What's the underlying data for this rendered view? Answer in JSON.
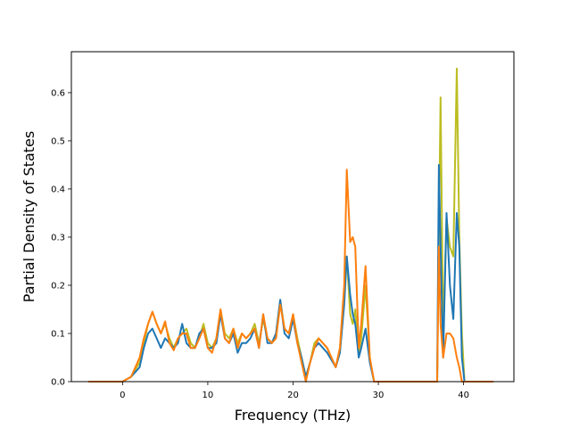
{
  "chart_data": {
    "type": "line",
    "title": "",
    "xlabel": "Frequency (THz)",
    "ylabel": "Partial Density of States",
    "xlim": [
      -6.0,
      45.9
    ],
    "ylim": [
      0.0,
      0.685
    ],
    "xticks": [
      0,
      10,
      20,
      30,
      40
    ],
    "yticks": [
      0.0,
      0.1,
      0.2,
      0.3,
      0.4,
      0.5,
      0.6
    ],
    "xtick_labels": [
      "0",
      "10",
      "20",
      "30",
      "40"
    ],
    "ytick_labels": [
      "0.0",
      "0.1",
      "0.2",
      "0.3",
      "0.4",
      "0.5",
      "0.6"
    ],
    "grid": false,
    "legend": "none",
    "series": [
      {
        "color": "#bcbd22",
        "x": [
          -4,
          0,
          1,
          2,
          2.5,
          3,
          3.5,
          4,
          4.5,
          5,
          5.5,
          6,
          6.5,
          7,
          7.5,
          8,
          8.5,
          9,
          9.5,
          10,
          10.5,
          11,
          11.5,
          12,
          12.5,
          13,
          13.5,
          14,
          14.5,
          15,
          15.5,
          16,
          16.5,
          17,
          17.5,
          18,
          18.5,
          19,
          19.5,
          20,
          20.5,
          21,
          21.5,
          22,
          22.5,
          23,
          24,
          25,
          25.5,
          26,
          26.3,
          26.7,
          27,
          27.3,
          27.7,
          28,
          28.5,
          29,
          29.5,
          30,
          36.9,
          37.1,
          37.3,
          37.6,
          38,
          38.4,
          38.8,
          39.2,
          39.5,
          39.8,
          40.1,
          43.5
        ],
        "y": [
          0,
          0,
          0.01,
          0.04,
          0.08,
          0.12,
          0.145,
          0.12,
          0.1,
          0.12,
          0.09,
          0.07,
          0.09,
          0.1,
          0.11,
          0.08,
          0.07,
          0.09,
          0.12,
          0.08,
          0.07,
          0.09,
          0.15,
          0.1,
          0.09,
          0.11,
          0.08,
          0.1,
          0.09,
          0.1,
          0.12,
          0.08,
          0.13,
          0.09,
          0.08,
          0.1,
          0.17,
          0.11,
          0.1,
          0.14,
          0.09,
          0.05,
          0.01,
          0.04,
          0.08,
          0.09,
          0.07,
          0.03,
          0.07,
          0.19,
          0.26,
          0.14,
          0.12,
          0.15,
          0.06,
          0.09,
          0.2,
          0.05,
          0.0,
          0.0,
          0.0,
          0.3,
          0.59,
          0.1,
          0.34,
          0.28,
          0.26,
          0.65,
          0.3,
          0.1,
          0.0,
          0.0
        ]
      },
      {
        "color": "#1f77b4",
        "x": [
          -4,
          0,
          1,
          2,
          2.5,
          3,
          3.5,
          4,
          4.5,
          5,
          5.5,
          6,
          6.5,
          7,
          7.5,
          8,
          8.5,
          9,
          9.5,
          10,
          10.5,
          11,
          11.5,
          12,
          12.5,
          13,
          13.5,
          14,
          14.5,
          15,
          15.5,
          16,
          16.5,
          17,
          17.5,
          18,
          18.5,
          19,
          19.5,
          20,
          20.5,
          21,
          21.5,
          22,
          22.5,
          23,
          24,
          25,
          25.5,
          26,
          26.3,
          26.7,
          27,
          27.3,
          27.7,
          28,
          28.5,
          29,
          29.5,
          30,
          36.9,
          37.1,
          37.3,
          37.6,
          38,
          38.4,
          38.8,
          39.2,
          39.5,
          39.8,
          40.1,
          43.5
        ],
        "y": [
          0,
          0,
          0.01,
          0.03,
          0.07,
          0.1,
          0.11,
          0.09,
          0.07,
          0.09,
          0.08,
          0.07,
          0.08,
          0.12,
          0.08,
          0.07,
          0.07,
          0.1,
          0.11,
          0.07,
          0.07,
          0.08,
          0.14,
          0.09,
          0.08,
          0.1,
          0.06,
          0.08,
          0.08,
          0.09,
          0.11,
          0.07,
          0.14,
          0.08,
          0.08,
          0.1,
          0.17,
          0.1,
          0.09,
          0.13,
          0.08,
          0.05,
          0.01,
          0.04,
          0.07,
          0.08,
          0.06,
          0.03,
          0.06,
          0.16,
          0.26,
          0.18,
          0.14,
          0.12,
          0.05,
          0.07,
          0.11,
          0.04,
          0.0,
          0.0,
          0.0,
          0.45,
          0.28,
          0.05,
          0.35,
          0.2,
          0.13,
          0.35,
          0.28,
          0.05,
          0.0,
          0.0
        ]
      },
      {
        "color": "#ff7f0e",
        "x": [
          -4,
          0,
          1,
          2,
          2.5,
          3,
          3.5,
          4,
          4.5,
          5,
          5.5,
          6,
          6.5,
          7,
          7.5,
          8,
          8.5,
          9,
          9.5,
          10,
          10.5,
          11,
          11.5,
          12,
          12.5,
          13,
          13.5,
          14,
          14.5,
          15,
          15.5,
          16,
          16.5,
          17,
          17.5,
          18,
          18.5,
          19,
          19.5,
          20,
          20.5,
          21,
          21.5,
          22,
          22.5,
          23,
          24,
          25,
          25.5,
          26,
          26.3,
          26.7,
          27,
          27.3,
          27.7,
          28,
          28.5,
          29,
          29.5,
          30,
          36.9,
          37.1,
          37.3,
          37.6,
          38,
          38.4,
          38.8,
          39.2,
          39.5,
          39.8,
          40.1,
          43.5
        ],
        "y": [
          0,
          0,
          0.01,
          0.05,
          0.09,
          0.12,
          0.145,
          0.12,
          0.1,
          0.125,
          0.08,
          0.065,
          0.09,
          0.1,
          0.1,
          0.07,
          0.07,
          0.09,
          0.11,
          0.07,
          0.06,
          0.09,
          0.15,
          0.09,
          0.08,
          0.11,
          0.07,
          0.1,
          0.09,
          0.1,
          0.11,
          0.07,
          0.14,
          0.09,
          0.08,
          0.09,
          0.16,
          0.11,
          0.1,
          0.14,
          0.08,
          0.04,
          0.0,
          0.04,
          0.07,
          0.09,
          0.07,
          0.03,
          0.07,
          0.2,
          0.44,
          0.29,
          0.3,
          0.28,
          0.07,
          0.12,
          0.24,
          0.05,
          0.0,
          0.0,
          0.0,
          0.28,
          0.12,
          0.05,
          0.1,
          0.1,
          0.09,
          0.05,
          0.03,
          0.0,
          0.0,
          0.0
        ]
      }
    ]
  }
}
